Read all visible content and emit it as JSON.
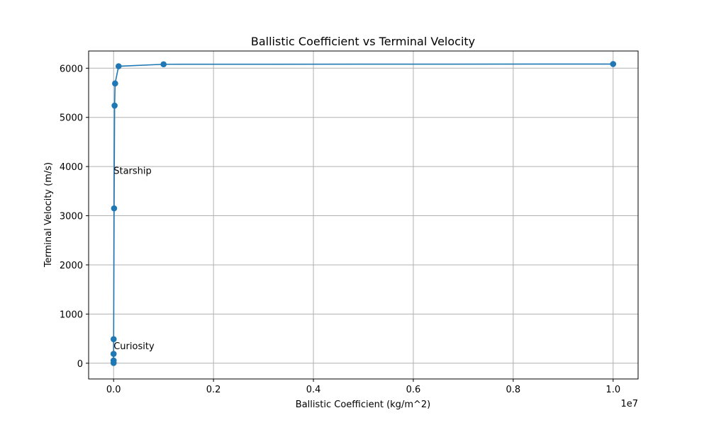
{
  "chart_data": {
    "type": "line",
    "title": "Ballistic Coefficient vs Terminal Velocity",
    "xlabel": "Ballistic Coefficient (kg/m^2)",
    "ylabel": "Terminal Velocity (m/s)",
    "x_offset_label": "1e7",
    "xlim": [
      -0.05,
      1.05
    ],
    "ylim": [
      -320,
      6350
    ],
    "x_scale": 10000000,
    "xticks": [
      0.0,
      0.2,
      0.4,
      0.6,
      0.8,
      1.0
    ],
    "xtick_labels": [
      "0.0",
      "0.2",
      "0.4",
      "0.6",
      "0.8",
      "1.0"
    ],
    "yticks": [
      0,
      1000,
      2000,
      3000,
      4000,
      5000,
      6000
    ],
    "ytick_labels": [
      "0",
      "1000",
      "2000",
      "3000",
      "4000",
      "5000",
      "6000"
    ],
    "grid": true,
    "color": "#1f77b4",
    "series": [
      {
        "marker": "o",
        "x": [
          1,
          10,
          100,
          1000,
          10000,
          20000,
          30000,
          100000,
          1000000,
          10000000
        ],
        "y": [
          5,
          55,
          190,
          490,
          3150,
          5240,
          5690,
          6040,
          6080,
          6085
        ]
      }
    ],
    "annotations": [
      {
        "text": "Starship",
        "x": 200,
        "y": 3920
      },
      {
        "text": "Curiosity",
        "x": 200,
        "y": 360
      }
    ]
  }
}
